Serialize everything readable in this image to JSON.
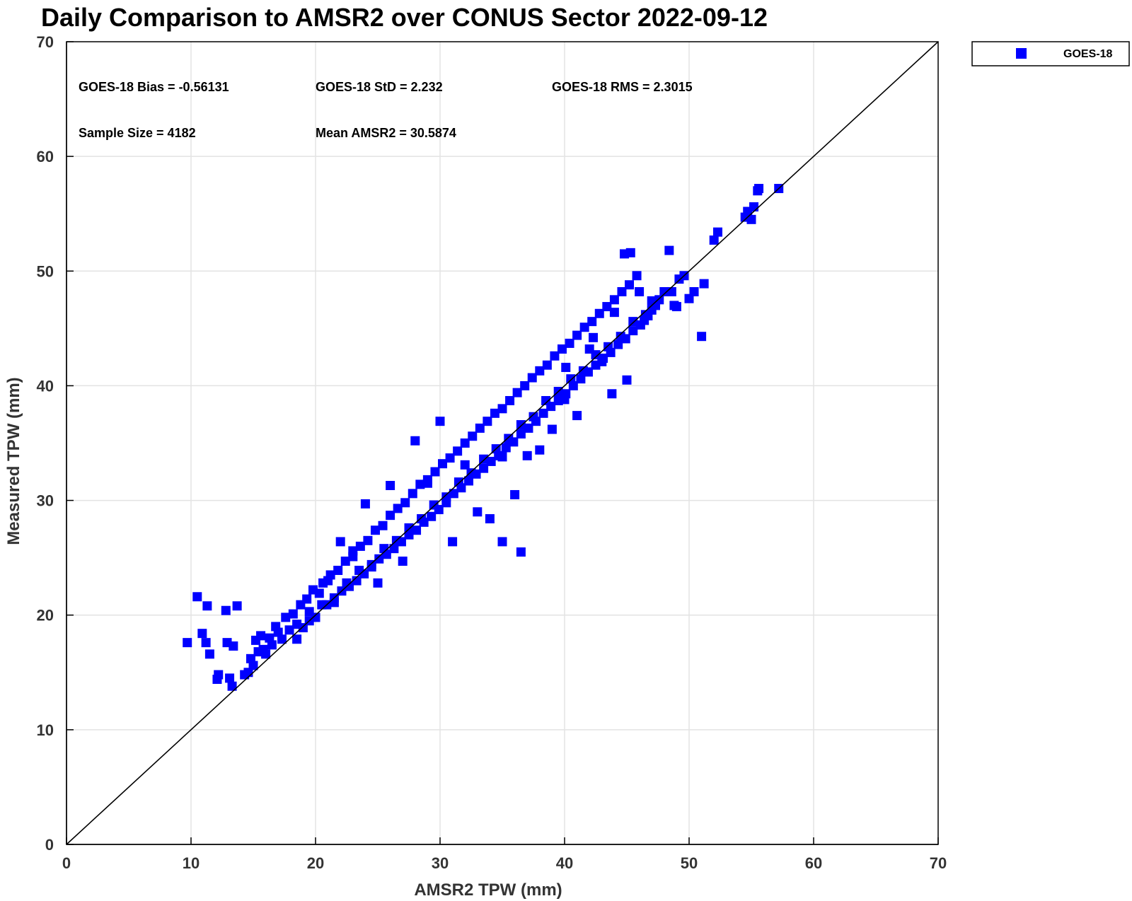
{
  "chart_data": {
    "type": "scatter",
    "title": "Daily Comparison to AMSR2 over CONUS Sector 2022-09-12",
    "xlabel": "AMSR2 TPW (mm)",
    "ylabel": "Measured TPW (mm)",
    "xlim": [
      0,
      70
    ],
    "ylim": [
      0,
      70
    ],
    "xticks": [
      0,
      10,
      20,
      30,
      40,
      50,
      60,
      70
    ],
    "yticks": [
      0,
      10,
      20,
      30,
      40,
      50,
      60,
      70
    ],
    "grid": true,
    "legend_position": "outside-top-right",
    "reference_line": {
      "x": [
        0,
        70
      ],
      "y": [
        0,
        70
      ],
      "color": "#000000"
    },
    "stats": [
      "GOES-18 Bias = -0.56131",
      "GOES-18 StD = 2.232",
      "GOES-18 RMS = 2.3015",
      "Sample Size = 4182",
      "Mean AMSR2 = 30.5874"
    ],
    "series": [
      {
        "name": "GOES-18",
        "color": "#0000ff",
        "marker": "square",
        "x": [
          9.7,
          10.5,
          10.9,
          11.2,
          11.3,
          11.5,
          12.1,
          12.2,
          12.8,
          12.9,
          13.1,
          13.3,
          13.4,
          13.7,
          14.3,
          14.6,
          14.8,
          15.0,
          15.2,
          15.4,
          15.6,
          15.8,
          16.0,
          16.3,
          16.5,
          16.8,
          17.0,
          17.3,
          17.6,
          17.9,
          18.2,
          18.5,
          18.8,
          19.0,
          19.3,
          19.5,
          19.8,
          20.0,
          20.3,
          20.6,
          20.9,
          21.2,
          21.5,
          21.8,
          22.1,
          22.4,
          22.7,
          23.0,
          23.3,
          23.6,
          23.9,
          24.2,
          24.5,
          24.8,
          25.1,
          25.4,
          25.7,
          26.0,
          26.3,
          26.6,
          26.9,
          27.2,
          27.5,
          27.8,
          28.1,
          28.4,
          28.7,
          29.0,
          29.3,
          29.6,
          29.9,
          30.2,
          30.5,
          30.8,
          31.1,
          31.4,
          31.7,
          32.0,
          32.3,
          32.6,
          32.9,
          33.2,
          33.5,
          33.8,
          34.1,
          34.4,
          34.7,
          35.0,
          35.3,
          35.6,
          35.9,
          36.2,
          36.5,
          36.8,
          37.1,
          37.4,
          37.7,
          38.0,
          38.3,
          38.6,
          38.9,
          39.2,
          39.5,
          39.8,
          40.1,
          40.4,
          40.7,
          41.0,
          41.3,
          41.6,
          41.9,
          42.2,
          42.5,
          42.8,
          43.1,
          43.4,
          43.7,
          44.0,
          44.3,
          44.6,
          44.9,
          45.2,
          45.5,
          45.8,
          46.1,
          46.4,
          46.7,
          47.0,
          47.3,
          47.6,
          48.0,
          48.4,
          48.8,
          49.2,
          49.6,
          50.0,
          50.4,
          51.0,
          51.2,
          52.0,
          52.3,
          54.5,
          54.7,
          55.0,
          55.2,
          55.5,
          55.6,
          57.2,
          18.5,
          19.5,
          20.5,
          21.5,
          22.5,
          23.5,
          24.5,
          25.5,
          26.5,
          27.5,
          28.5,
          29.5,
          30.5,
          31.5,
          32.5,
          33.5,
          34.5,
          35.5,
          36.5,
          37.5,
          38.5,
          39.5,
          40.5,
          41.5,
          42.5,
          43.5,
          44.5,
          45.5,
          46.5,
          22.0,
          24.0,
          26.0,
          28.0,
          30.0,
          32.0,
          34.0,
          36.0,
          38.0,
          40.0,
          42.0,
          44.0,
          21.0,
          23.0,
          25.0,
          27.0,
          29.0,
          31.0,
          33.0,
          35.0,
          37.0,
          39.0,
          41.0,
          43.0,
          45.0,
          35.0,
          36.5,
          46.0,
          47.0,
          48.6,
          49.0,
          44.8,
          45.3,
          43.8,
          40.1,
          42.3
        ],
        "y": [
          17.6,
          21.6,
          18.4,
          17.6,
          20.8,
          16.6,
          14.4,
          14.8,
          20.4,
          17.6,
          14.5,
          13.8,
          17.3,
          20.8,
          14.8,
          15.0,
          16.2,
          15.6,
          17.8,
          16.8,
          18.2,
          17.0,
          16.6,
          18.0,
          17.4,
          19.0,
          18.5,
          17.9,
          19.8,
          18.7,
          20.1,
          19.2,
          20.9,
          18.9,
          21.4,
          20.3,
          22.2,
          19.8,
          21.9,
          22.8,
          20.9,
          23.5,
          21.5,
          23.9,
          22.1,
          24.7,
          22.5,
          25.1,
          23.0,
          26.0,
          23.6,
          26.5,
          24.2,
          27.4,
          24.9,
          27.8,
          25.3,
          28.7,
          25.8,
          29.3,
          26.4,
          29.8,
          27.0,
          30.6,
          27.4,
          31.4,
          28.1,
          31.8,
          28.6,
          32.5,
          29.2,
          33.2,
          29.8,
          33.7,
          30.6,
          34.3,
          31.1,
          35.0,
          31.7,
          35.6,
          32.3,
          36.3,
          32.8,
          36.9,
          33.4,
          37.6,
          33.9,
          38.0,
          34.6,
          38.7,
          35.1,
          39.4,
          35.8,
          40.0,
          36.3,
          40.7,
          36.9,
          41.3,
          37.6,
          41.8,
          38.2,
          42.6,
          38.7,
          43.2,
          39.3,
          43.7,
          40.0,
          44.4,
          40.6,
          45.1,
          41.2,
          45.6,
          41.8,
          46.3,
          42.4,
          46.9,
          42.9,
          47.5,
          43.6,
          48.2,
          44.1,
          48.8,
          44.8,
          49.6,
          45.3,
          45.7,
          46.1,
          46.6,
          47.0,
          47.5,
          48.2,
          51.8,
          47.0,
          49.3,
          49.6,
          47.6,
          48.2,
          44.3,
          48.9,
          52.7,
          53.4,
          54.7,
          55.2,
          54.5,
          55.6,
          57.0,
          57.2,
          57.2,
          17.9,
          19.5,
          20.9,
          21.1,
          22.8,
          23.9,
          24.4,
          25.8,
          26.5,
          27.6,
          28.4,
          29.6,
          30.3,
          31.6,
          32.4,
          33.6,
          34.5,
          35.4,
          36.6,
          37.3,
          38.7,
          39.5,
          40.6,
          41.3,
          42.7,
          43.4,
          44.3,
          45.6,
          46.2,
          26.4,
          29.7,
          31.3,
          35.2,
          36.9,
          33.1,
          28.4,
          30.5,
          34.4,
          38.8,
          43.2,
          46.4,
          23.0,
          25.6,
          22.8,
          24.7,
          31.5,
          26.4,
          29.0,
          33.8,
          33.9,
          36.2,
          37.4,
          42.1,
          40.5,
          26.4,
          25.5,
          48.2,
          47.4,
          48.2,
          46.9,
          51.5,
          51.6,
          39.3,
          41.6,
          44.2
        ]
      }
    ]
  }
}
